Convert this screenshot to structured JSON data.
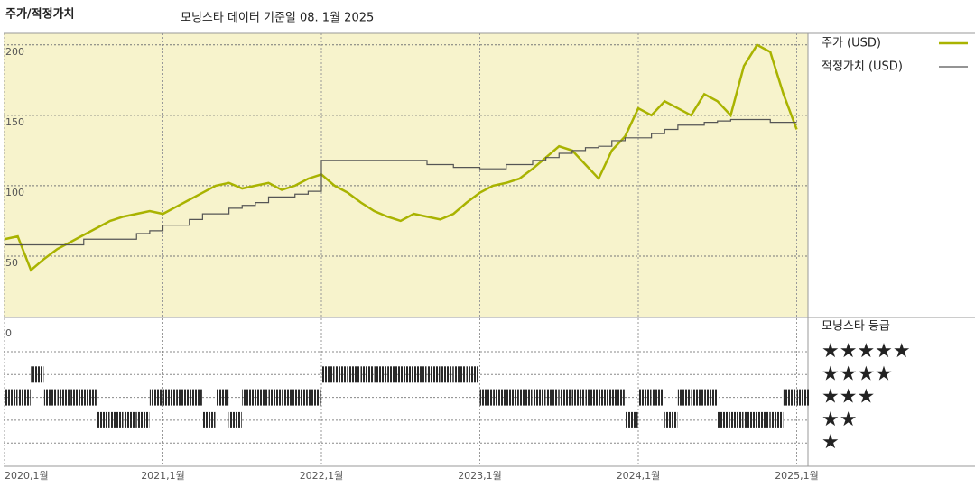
{
  "chart_data": [
    {
      "type": "line",
      "title": "주가/적정가치",
      "subtitle": "모닝스타 데이터 기준일 08. 1월 2025",
      "x": [
        "2020-01",
        "2020-02",
        "2020-03",
        "2020-04",
        "2020-05",
        "2020-06",
        "2020-07",
        "2020-08",
        "2020-09",
        "2020-10",
        "2020-11",
        "2020-12",
        "2021-01",
        "2021-02",
        "2021-03",
        "2021-04",
        "2021-05",
        "2021-06",
        "2021-07",
        "2021-08",
        "2021-09",
        "2021-10",
        "2021-11",
        "2021-12",
        "2022-01",
        "2022-02",
        "2022-03",
        "2022-04",
        "2022-05",
        "2022-06",
        "2022-07",
        "2022-08",
        "2022-09",
        "2022-10",
        "2022-11",
        "2022-12",
        "2023-01",
        "2023-02",
        "2023-03",
        "2023-04",
        "2023-05",
        "2023-06",
        "2023-07",
        "2023-08",
        "2023-09",
        "2023-10",
        "2023-11",
        "2023-12",
        "2024-01",
        "2024-02",
        "2024-03",
        "2024-04",
        "2024-05",
        "2024-06",
        "2024-07",
        "2024-08",
        "2024-09",
        "2024-10",
        "2024-11",
        "2024-12",
        "2025-01"
      ],
      "series": [
        {
          "name": "주가 (USD)",
          "color": "#a9b300",
          "values": [
            62,
            64,
            40,
            48,
            55,
            60,
            65,
            70,
            75,
            78,
            80,
            82,
            80,
            85,
            90,
            95,
            100,
            102,
            98,
            100,
            102,
            97,
            100,
            105,
            108,
            100,
            95,
            88,
            82,
            78,
            75,
            80,
            78,
            76,
            80,
            88,
            95,
            100,
            102,
            105,
            112,
            120,
            128,
            125,
            115,
            105,
            125,
            135,
            155,
            150,
            160,
            155,
            150,
            165,
            160,
            150,
            185,
            200,
            195,
            165,
            140
          ]
        },
        {
          "name": "적정가치 (USD)",
          "color": "#555555",
          "step": true,
          "values": [
            58,
            58,
            58,
            58,
            58,
            58,
            62,
            62,
            62,
            62,
            66,
            68,
            72,
            72,
            76,
            80,
            80,
            84,
            86,
            88,
            92,
            92,
            94,
            96,
            118,
            118,
            118,
            118,
            118,
            118,
            118,
            118,
            115,
            115,
            113,
            113,
            112,
            112,
            115,
            115,
            118,
            120,
            123,
            125,
            127,
            128,
            132,
            134,
            134,
            137,
            140,
            143,
            143,
            145,
            146,
            147,
            147,
            147,
            145,
            145,
            145
          ]
        }
      ],
      "ylim": [
        0,
        205
      ],
      "yticks": [
        0,
        50,
        100,
        150,
        200
      ],
      "xticks": [
        {
          "value": "2020-01",
          "label": "2020,1월"
        },
        {
          "value": "2021-01",
          "label": "2021,1월"
        },
        {
          "value": "2022-01",
          "label": "2022,1월"
        },
        {
          "value": "2023-01",
          "label": "2023,1월"
        },
        {
          "value": "2024-01",
          "label": "2024,1월"
        },
        {
          "value": "2025-01",
          "label": "2025,1월"
        }
      ],
      "background": "#f7f3cc",
      "grid": true
    },
    {
      "type": "rating",
      "title": "모닝스타 등급",
      "levels": [
        {
          "value": 5,
          "label": "★★★★★"
        },
        {
          "value": 4,
          "label": "★★★★"
        },
        {
          "value": 3,
          "label": "★★★"
        },
        {
          "value": 2,
          "label": "★★"
        },
        {
          "value": 1,
          "label": "★"
        }
      ],
      "x": [
        "2020-01",
        "2020-02",
        "2020-03",
        "2020-04",
        "2020-05",
        "2020-06",
        "2020-07",
        "2020-08",
        "2020-09",
        "2020-10",
        "2020-11",
        "2020-12",
        "2021-01",
        "2021-02",
        "2021-03",
        "2021-04",
        "2021-05",
        "2021-06",
        "2021-07",
        "2021-08",
        "2021-09",
        "2021-10",
        "2021-11",
        "2021-12",
        "2022-01",
        "2022-02",
        "2022-03",
        "2022-04",
        "2022-05",
        "2022-06",
        "2022-07",
        "2022-08",
        "2022-09",
        "2022-10",
        "2022-11",
        "2022-12",
        "2023-01",
        "2023-02",
        "2023-03",
        "2023-04",
        "2023-05",
        "2023-06",
        "2023-07",
        "2023-08",
        "2023-09",
        "2023-10",
        "2023-11",
        "2023-12",
        "2024-01",
        "2024-02",
        "2024-03",
        "2024-04",
        "2024-05",
        "2024-06",
        "2024-07",
        "2024-08",
        "2024-09",
        "2024-10",
        "2024-11",
        "2024-12",
        "2025-01"
      ],
      "values": [
        3,
        3,
        4,
        3,
        3,
        3,
        3,
        2,
        2,
        2,
        2,
        3,
        3,
        3,
        3,
        2,
        3,
        2,
        3,
        3,
        3,
        3,
        3,
        3,
        4,
        4,
        4,
        4,
        4,
        4,
        4,
        4,
        4,
        4,
        4,
        4,
        3,
        3,
        3,
        3,
        3,
        3,
        3,
        3,
        3,
        3,
        3,
        2,
        3,
        3,
        2,
        3,
        3,
        3,
        2,
        2,
        2,
        2,
        2,
        3,
        3
      ],
      "color": "#2a2a2a",
      "top_color": "#3f8a72"
    }
  ]
}
